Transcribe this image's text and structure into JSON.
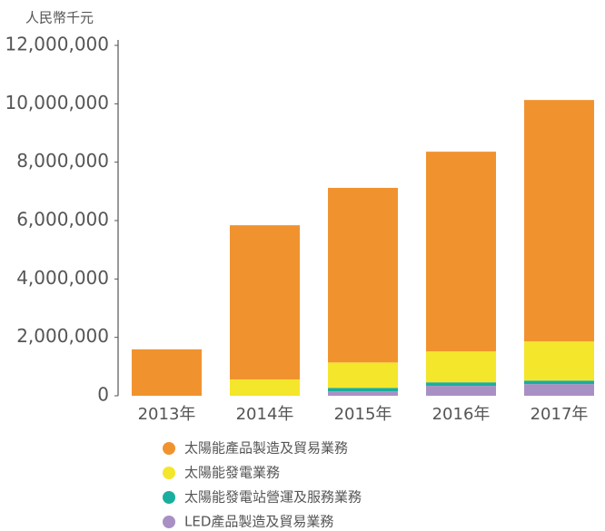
{
  "chart_data": {
    "type": "stacked_bar",
    "y_axis_label": "人民幣千元",
    "categories": [
      "2013年",
      "2014年",
      "2015年",
      "2016年",
      "2017年"
    ],
    "series": [
      {
        "name": "太陽能產品製造及貿易業務",
        "color": "#f0932f",
        "values": [
          1590000,
          5280000,
          5980000,
          6840000,
          8270000
        ]
      },
      {
        "name": "太陽能發電業務",
        "color": "#f4e62a",
        "values": [
          0,
          560000,
          870000,
          1060000,
          1340000
        ]
      },
      {
        "name": "太陽能發電站營運及服務業務",
        "color": "#1aaea0",
        "values": [
          0,
          0,
          120000,
          120000,
          120000
        ]
      },
      {
        "name": "LED產品製造及貿易業務",
        "color": "#a990c4",
        "values": [
          0,
          0,
          150000,
          340000,
          400000
        ]
      }
    ],
    "ylim": [
      0,
      12000000
    ],
    "yticks": [
      0,
      {
        "value": 2000000,
        "label": "2,000,000"
      },
      {
        "value": 4000000,
        "label": "4,000,000"
      },
      {
        "value": 6000000,
        "label": "6,000,000"
      },
      {
        "value": 8000000,
        "label": "8,000,000"
      },
      {
        "value": 10000000,
        "label": "10,000,000"
      },
      {
        "value": 12000000,
        "label": "12,000,000"
      }
    ]
  }
}
